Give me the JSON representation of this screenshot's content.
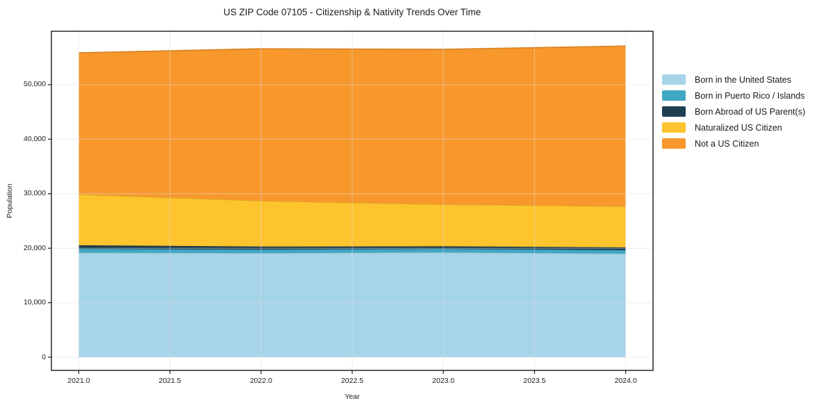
{
  "title": "US ZIP Code 07105 - Citizenship & Nativity Trends Over Time",
  "chart_data": {
    "type": "area",
    "stacked": true,
    "title": "US ZIP Code 07105 - Citizenship & Nativity Trends Over Time",
    "xlabel": "Year",
    "ylabel": "Population",
    "x": [
      2021,
      2022,
      2023,
      2024
    ],
    "series": [
      {
        "name": "Born in the United States",
        "color": "#a6d4e8",
        "values": [
          19200,
          19100,
          19250,
          19000
        ]
      },
      {
        "name": "Born in Puerto Rico / Islands",
        "color": "#3fa8c5",
        "values": [
          700,
          650,
          650,
          650
        ]
      },
      {
        "name": "Born Abroad of US Parent(s)",
        "color": "#1f3f52",
        "values": [
          650,
          550,
          450,
          500
        ]
      },
      {
        "name": "Naturalized US Citizen",
        "color": "#fdc42d",
        "values": [
          9350,
          8400,
          7700,
          7550
        ]
      },
      {
        "name": "Not a US Citizen",
        "color": "#f8982c",
        "values": [
          25950,
          27900,
          28450,
          29400
        ]
      }
    ],
    "totals": [
      55850,
      56600,
      56500,
      57100
    ],
    "x_ticks": [
      "2021.0",
      "2021.5",
      "2022.0",
      "2022.5",
      "2023.0",
      "2023.5",
      "2024.0"
    ],
    "x_tick_values": [
      2021,
      2021.5,
      2022,
      2022.5,
      2023,
      2023.5,
      2024
    ],
    "y_ticks": [
      "0",
      "10,000",
      "20,000",
      "30,000",
      "40,000",
      "50,000"
    ],
    "y_tick_values": [
      0,
      10000,
      20000,
      30000,
      40000,
      50000
    ],
    "xlim": [
      2020.85,
      2024.15
    ],
    "ylim": [
      -2420,
      59810
    ],
    "grid": true,
    "grid_color": "#dcdcdc",
    "spine_color": "#1a1a1a",
    "text_color": "#1a1a1a",
    "legend_position": "right"
  }
}
